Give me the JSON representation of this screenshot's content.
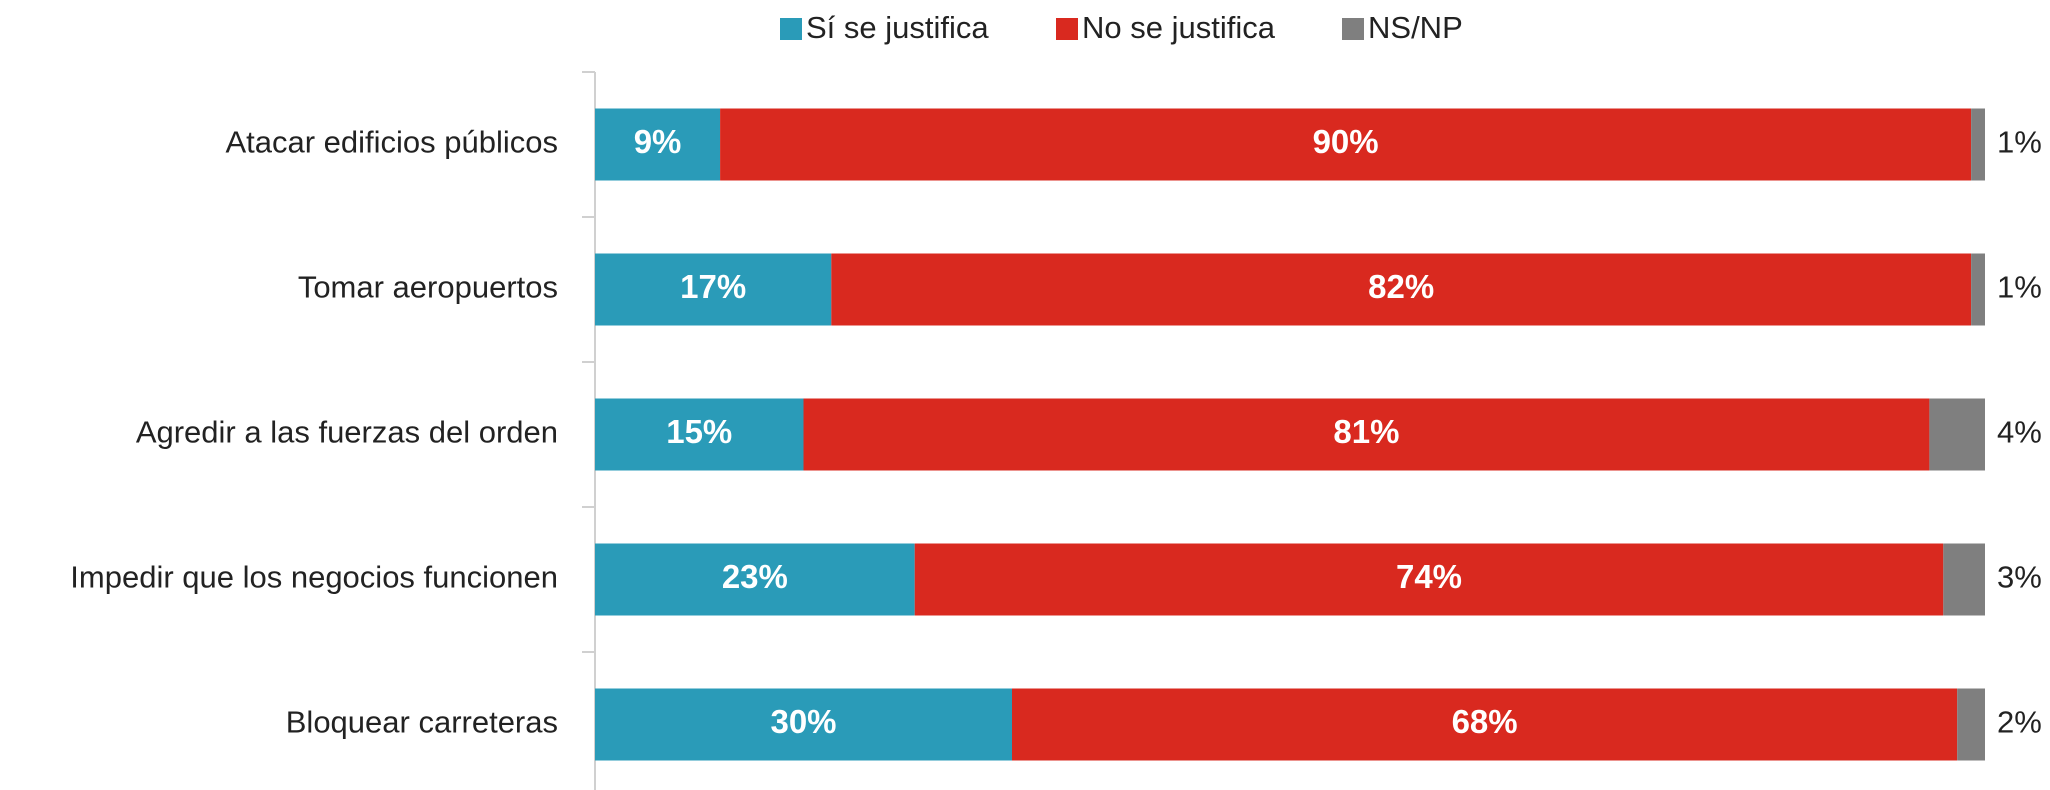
{
  "chart_data": {
    "type": "stacked_bar_horizontal",
    "categories": [
      "Atacar edificios públicos",
      "Tomar aeropuertos",
      "Agredir a las fuerzas del orden",
      "Impedir que los negocios funcionen",
      "Bloquear carreteras"
    ],
    "series": [
      {
        "name": "Sí se justifica",
        "color": "#2a9bb8",
        "values": [
          9,
          17,
          15,
          23,
          30
        ],
        "value_labels": [
          "9%",
          "17%",
          "15%",
          "23%",
          "30%"
        ]
      },
      {
        "name": "No se justifica",
        "color": "#d9291f",
        "values": [
          90,
          82,
          81,
          74,
          68
        ],
        "value_labels": [
          "90%",
          "82%",
          "81%",
          "74%",
          "68%"
        ]
      },
      {
        "name": "NS/NP",
        "color": "#7f7f7f",
        "values": [
          1,
          1,
          4,
          3,
          2
        ],
        "value_labels": [
          "1%",
          "1%",
          "4%",
          "3%",
          "2%"
        ]
      }
    ]
  }
}
